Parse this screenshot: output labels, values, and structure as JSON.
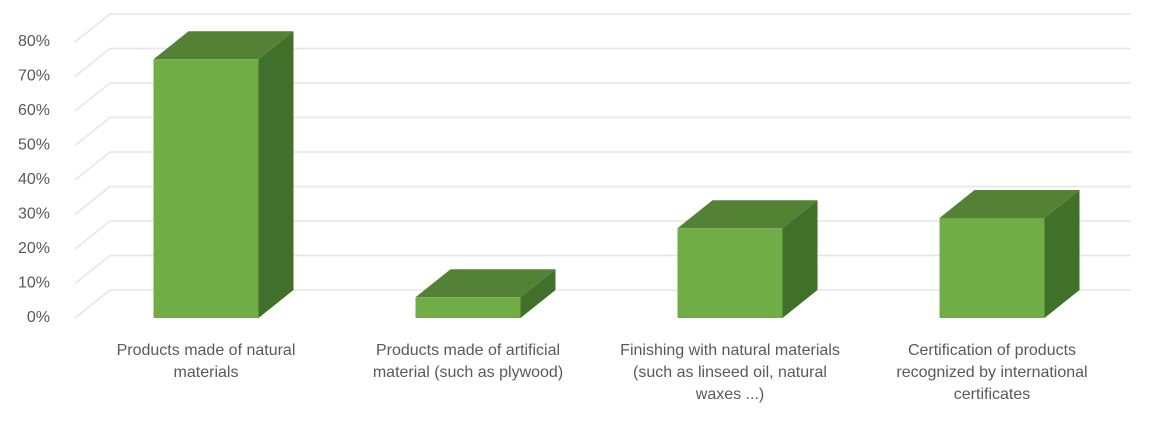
{
  "chart_data": {
    "type": "bar3d",
    "categories": [
      "Products made of natural materials",
      "Products made of artificial material (such as plywood)",
      "Finishing with natural materials (such as linseed oil, natural waxes ...)",
      "Certification of products recognized by international certificates"
    ],
    "values": [
      75,
      6,
      26,
      29
    ],
    "color": "#70ad47",
    "ylim": [
      0,
      80
    ],
    "yticks": [
      {
        "value": 0,
        "label": "0%"
      },
      {
        "value": 10,
        "label": "10%"
      },
      {
        "value": 20,
        "label": "20%"
      },
      {
        "value": 30,
        "label": "30%"
      },
      {
        "value": 40,
        "label": "40%"
      },
      {
        "value": 50,
        "label": "50%"
      },
      {
        "value": 60,
        "label": "60%"
      },
      {
        "value": 70,
        "label": "70%"
      },
      {
        "value": 80,
        "label": "80%"
      }
    ],
    "grid": true
  }
}
